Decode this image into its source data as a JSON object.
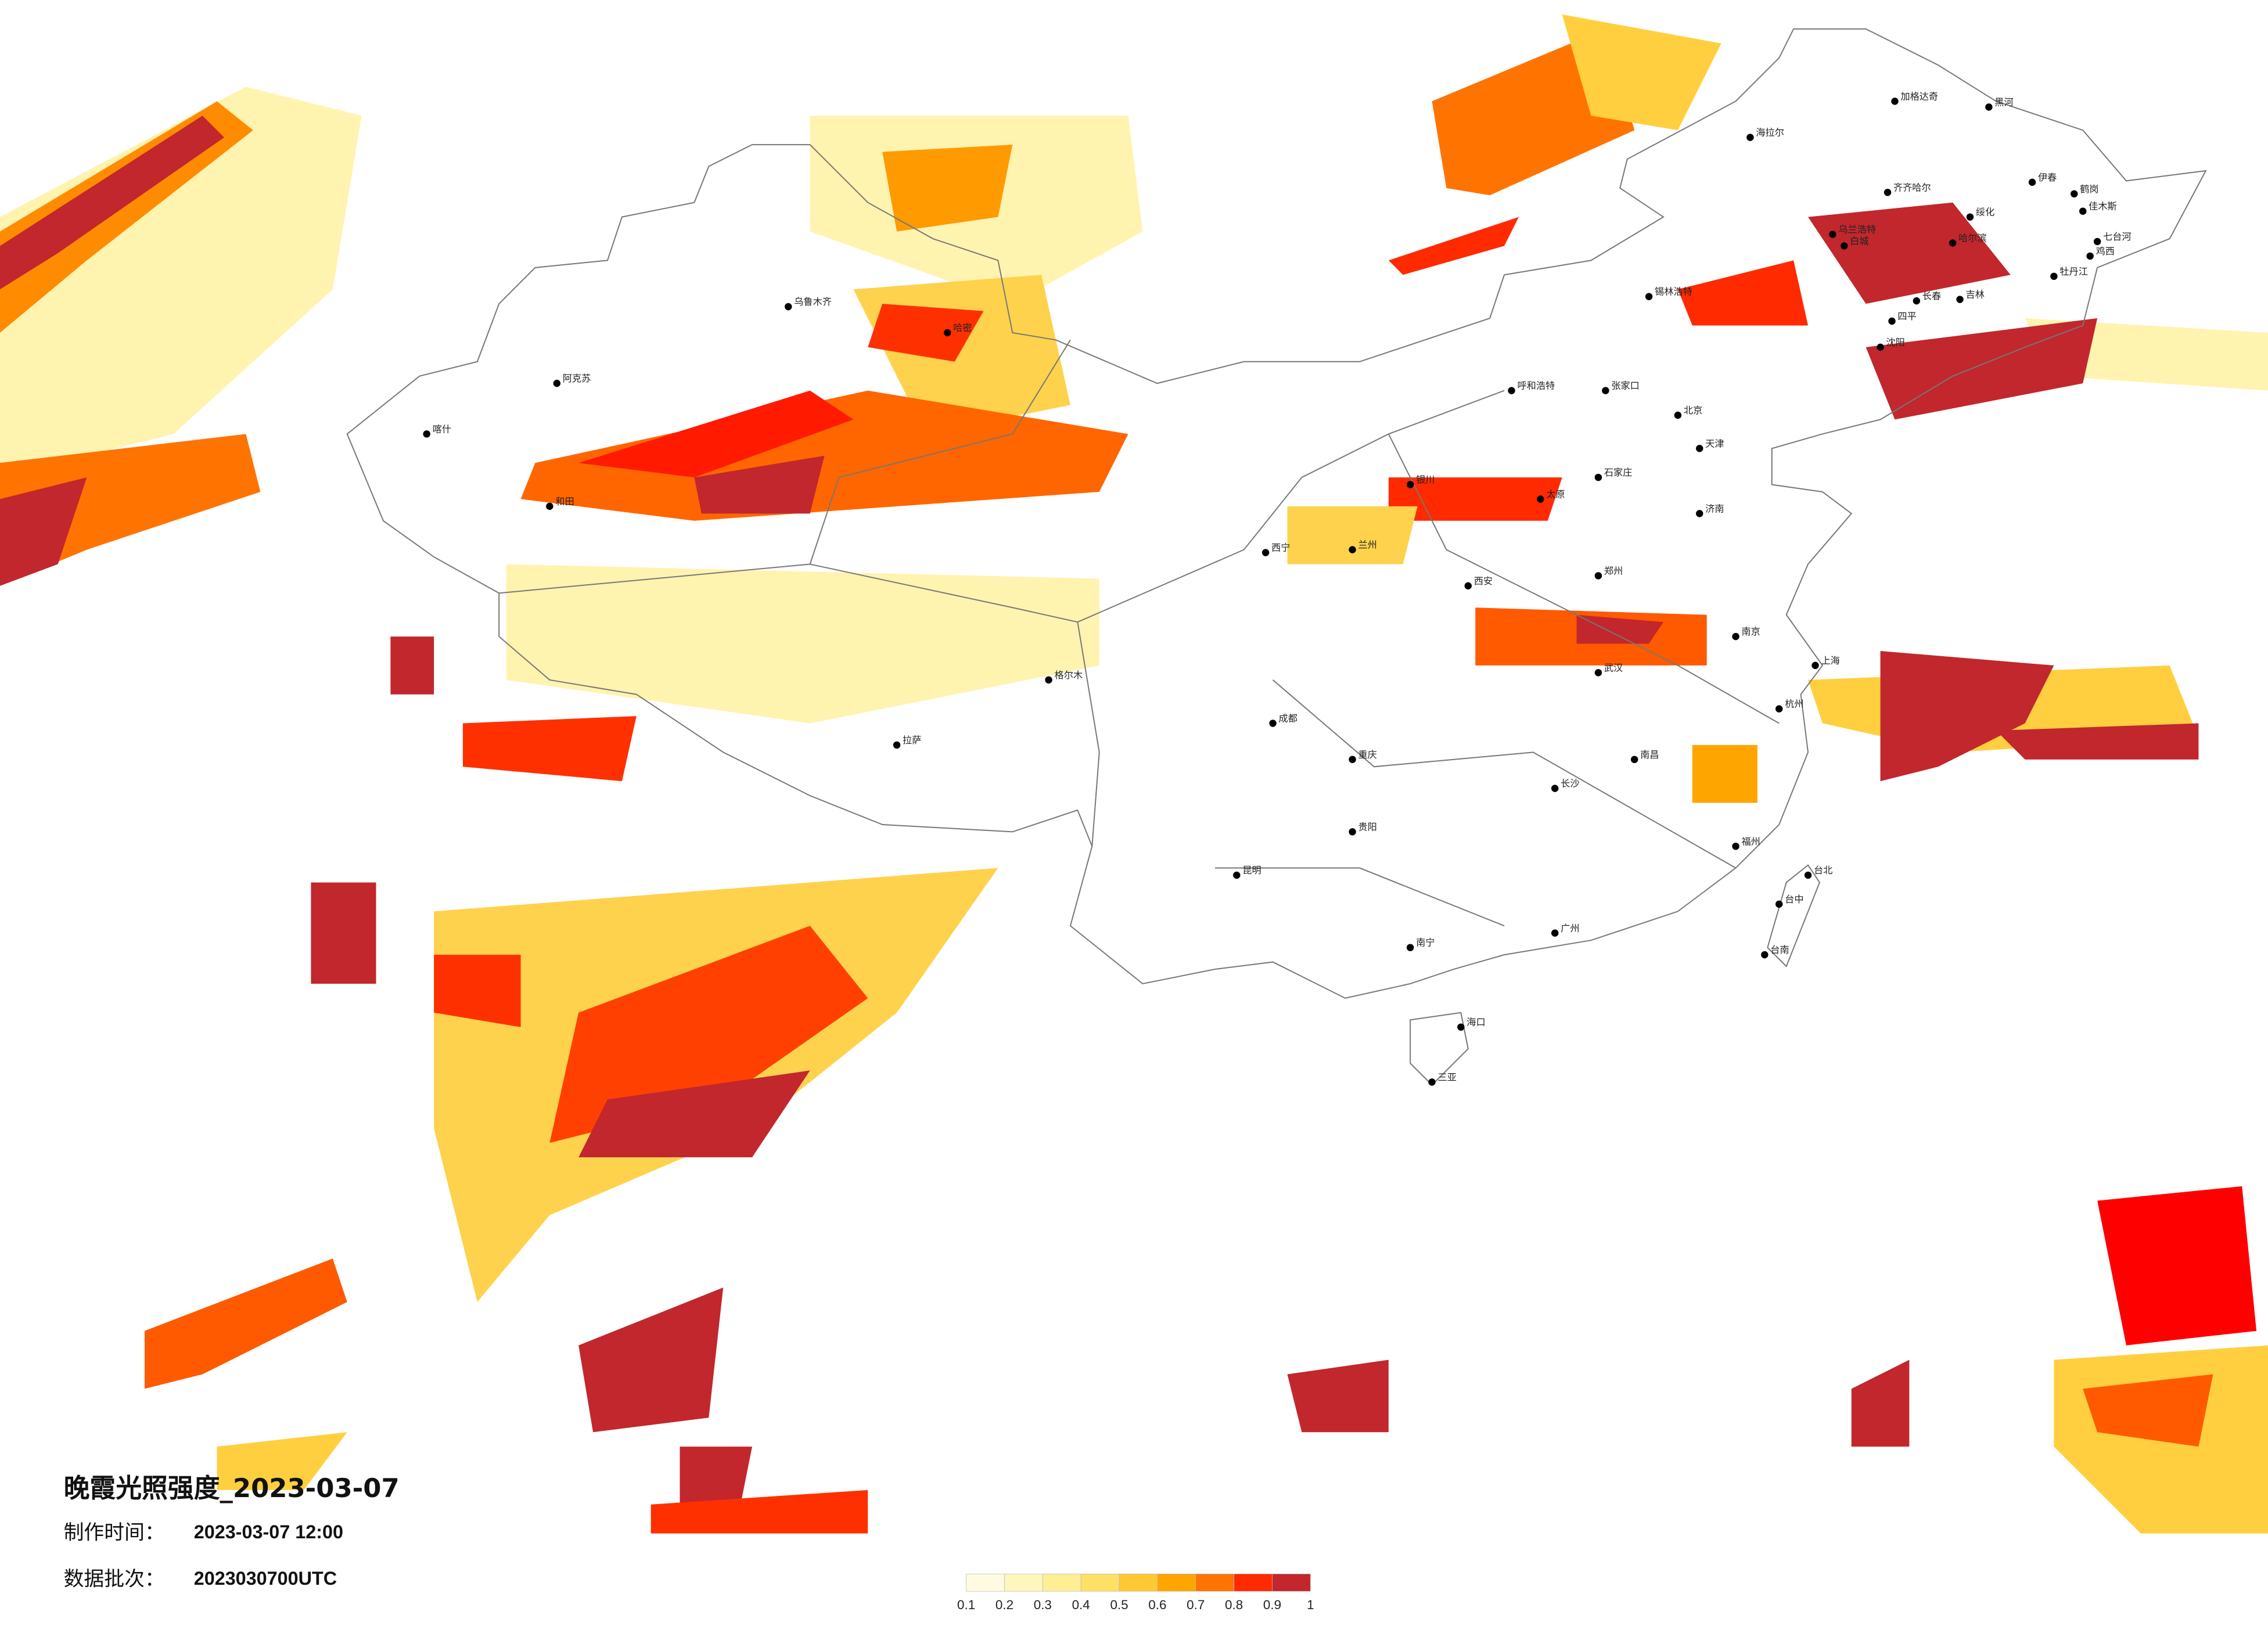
{
  "header": {
    "title": "晚霞光照强度_2023-03-07",
    "made_label": "制作时间：",
    "made_value": "2023-03-07 12:00",
    "batch_label": "数据批次：",
    "batch_value": "2023030700UTC"
  },
  "legend": {
    "ticks": [
      0.1,
      0.2,
      0.3,
      0.4,
      0.5,
      0.6,
      0.7,
      0.8,
      0.9,
      1
    ],
    "colors": [
      "#fffbe0",
      "#fff6bd",
      "#ffef94",
      "#ffe066",
      "#ffc933",
      "#ffa500",
      "#ff7300",
      "#ff2a00",
      "#c1272d"
    ]
  },
  "cities": [
    "加格达奇",
    "黑河",
    "海拉尔",
    "伊春",
    "齐齐哈尔",
    "鹤岗",
    "佳木斯",
    "绥化",
    "乌兰浩特",
    "哈尔滨",
    "七台河",
    "鸡西",
    "白城",
    "牡丹江",
    "长春",
    "吉林",
    "锡林浩特",
    "四平",
    "沈阳",
    "呼和浩特",
    "张家口",
    "北京",
    "天津",
    "石家庄",
    "太原",
    "济南",
    "郑州",
    "西安",
    "兰州",
    "银川",
    "西宁",
    "拉萨",
    "乌鲁木齐",
    "阿克苏",
    "喀什",
    "和田",
    "哈密",
    "格尔木",
    "成都",
    "重庆",
    "武汉",
    "南京",
    "上海",
    "杭州",
    "长沙",
    "南昌",
    "福州",
    "广州",
    "南宁",
    "贵阳",
    "昆明",
    "海口",
    "三亚",
    "台北",
    "台中",
    "台南"
  ]
}
